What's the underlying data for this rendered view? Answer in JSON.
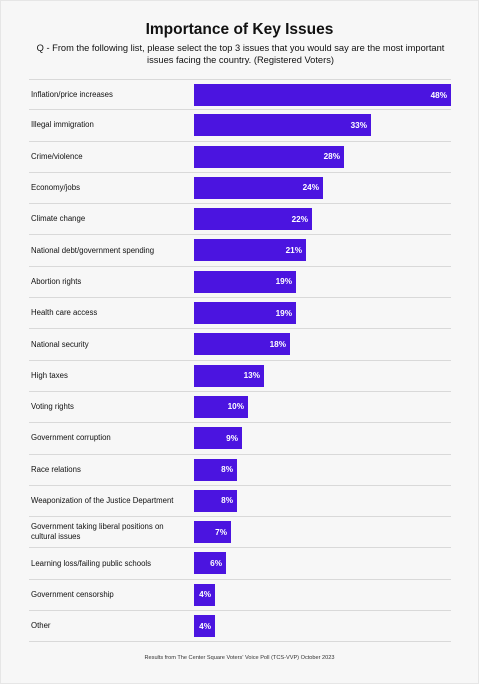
{
  "chart_data": {
    "type": "bar",
    "orientation": "horizontal",
    "title": "Importance of Key Issues",
    "subtitle": "Q - From the following list, please select the top 3 issues that you would say are the most important issues facing the country. (Registered Voters)",
    "categories": [
      "Inflation/price increases",
      "Illegal immigration",
      "Crime/violence",
      "Economy/jobs",
      "Climate change",
      "National debt/government spending",
      "Abortion rights",
      "Health care access",
      "National security",
      "High taxes",
      "Voting rights",
      "Government corruption",
      "Race relations",
      "Weaponization of the Justice Department",
      "Government taking liberal positions on cultural issues",
      "Learning loss/failing public schools",
      "Government censorship",
      "Other"
    ],
    "values": [
      48,
      33,
      28,
      24,
      22,
      21,
      19,
      19,
      18,
      13,
      10,
      9,
      8,
      8,
      7,
      6,
      4,
      4
    ],
    "value_labels": [
      "48%",
      "33%",
      "28%",
      "24%",
      "22%",
      "21%",
      "19%",
      "19%",
      "18%",
      "13%",
      "10%",
      "9%",
      "8%",
      "8%",
      "7%",
      "6%",
      "4%",
      "4%"
    ],
    "xlim": [
      0,
      48
    ],
    "grid": false,
    "bar_color": "#4b14e0"
  },
  "footer": "Results from The Center Square Voters' Voice Poll (TCS-VVP) October 2023"
}
